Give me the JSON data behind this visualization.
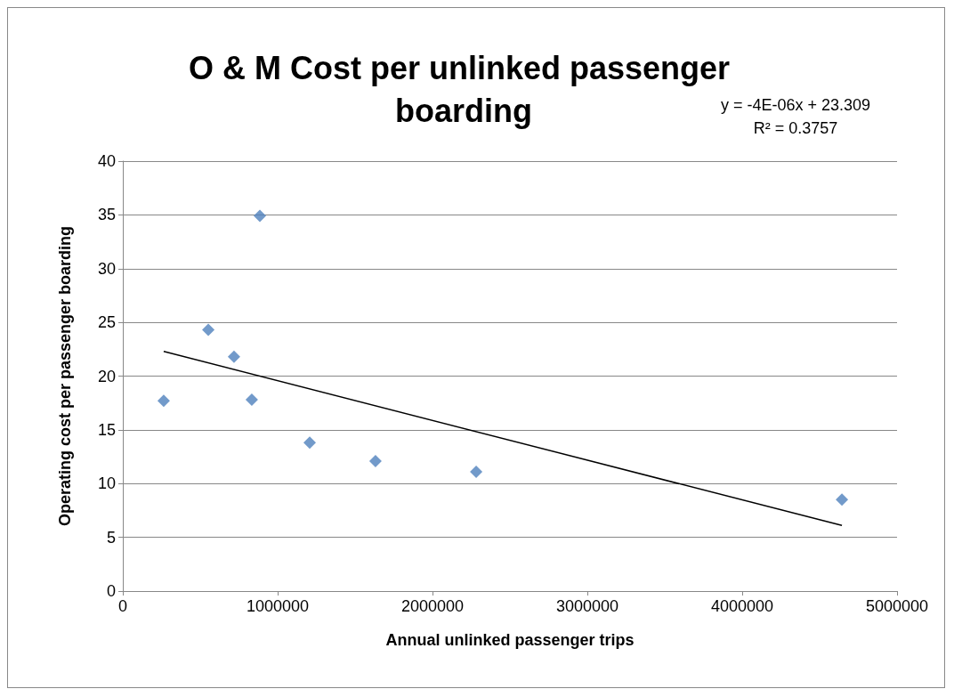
{
  "chart_data": {
    "type": "scatter",
    "title": "O & M Cost per unlinked passenger boarding",
    "xlabel": "Annual unlinked passenger trips",
    "ylabel": "Operating cost per passenger boarding",
    "annotations": [
      "y = -4E-06x + 23.309",
      "R² = 0.3757"
    ],
    "xlim": [
      0,
      5000000
    ],
    "xticks": [
      0,
      1000000,
      2000000,
      3000000,
      4000000,
      5000000
    ],
    "ylim": [
      0,
      40
    ],
    "yticks": [
      0,
      5,
      10,
      15,
      20,
      25,
      30,
      35,
      40
    ],
    "grid": "y",
    "marker": "diamond",
    "series": [
      {
        "color": "#4f81bd",
        "x": [
          264000,
          552000,
          718000,
          833000,
          885000,
          1207000,
          1632000,
          2282000,
          4644000
        ],
        "values": [
          17.7,
          24.3,
          21.8,
          17.8,
          34.9,
          13.8,
          12.1,
          11.1,
          8.5
        ]
      },
      {
        "type": "line",
        "color": "#000000",
        "marker": "none",
        "line_style": "solid",
        "x": [
          264000,
          4644000
        ],
        "values": [
          22.3,
          6.1
        ]
      }
    ]
  }
}
